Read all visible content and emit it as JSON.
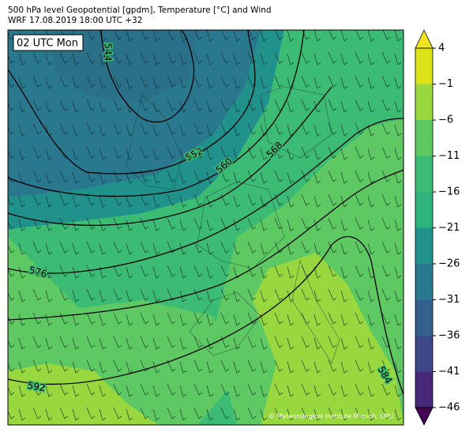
{
  "header": {
    "title": "500 hPa level Geopotential [gpdm], Temperature [°C] and Wind",
    "subtitle": "WRF 17.08.2019 18:00 UTC +32"
  },
  "map": {
    "time_label": "02 UTC Mon",
    "contour_labels": [
      "544",
      "552",
      "560",
      "568",
      "576",
      "592",
      "584"
    ],
    "credit": "© Meteorological Institute Munich, LMU"
  },
  "colorbar": {
    "ticks": [
      "4",
      "−1",
      "−6",
      "−11",
      "−16",
      "−21",
      "−26",
      "−31",
      "−36",
      "−41",
      "−46"
    ],
    "colors": [
      "#f0e51e",
      "#dde318",
      "#98d83e",
      "#5ec962",
      "#3cbb75",
      "#2fb47c",
      "#21918c",
      "#2a788e",
      "#355f8d",
      "#3e4989",
      "#482878",
      "#440154"
    ]
  }
}
